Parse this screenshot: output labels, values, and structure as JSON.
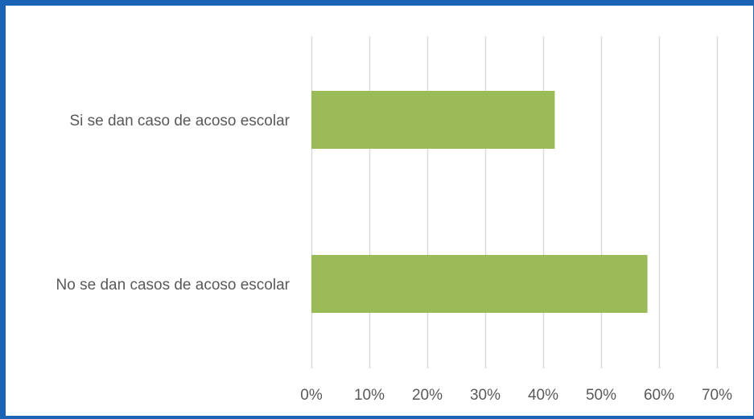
{
  "chart_data": {
    "type": "bar",
    "orientation": "horizontal",
    "categories": [
      "Si se dan caso de acoso escolar",
      "No se dan casos de acoso escolar"
    ],
    "values": [
      0.42,
      0.58
    ],
    "xlim": [
      0,
      0.7
    ],
    "ticks": [
      0,
      0.1,
      0.2,
      0.3,
      0.4,
      0.5,
      0.6,
      0.7
    ],
    "tick_labels": [
      "0%",
      "10%",
      "20%",
      "30%",
      "40%",
      "50%",
      "60%",
      "70%"
    ],
    "grid": true,
    "legend": "none",
    "bar_color": "#9bbb59",
    "grid_color": "#d9d9d9",
    "text_color": "#595959",
    "frame_color": "#1b63b5"
  }
}
